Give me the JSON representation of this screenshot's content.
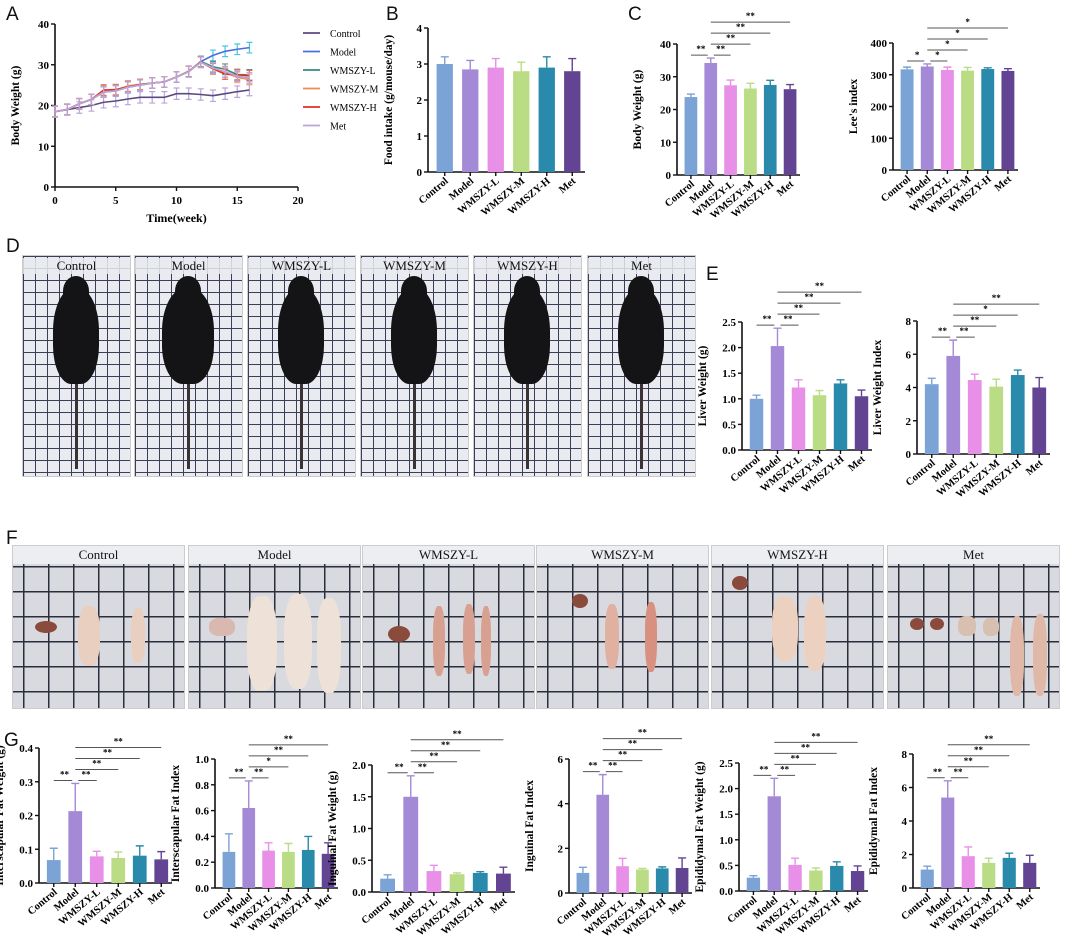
{
  "panel_letters": [
    "A",
    "B",
    "C",
    "D",
    "E",
    "F",
    "G"
  ],
  "colors": {
    "Control": "#7ba3d6",
    "Model": "#a48ad6",
    "WMSZY-L": "#e890e8",
    "WMSZY-M": "#b9dc84",
    "WMSZY-H": "#2a8aab",
    "Met": "#624493"
  },
  "photos_d": {
    "labels": [
      "Control",
      "Model",
      "WMSZY-L",
      "WMSZY-M",
      "WMSZY-H",
      "Met"
    ]
  },
  "photos_f": {
    "labels": [
      "Control",
      "Model",
      "WMSZY-L",
      "WMSZY-M",
      "WMSZY-H",
      "Met"
    ]
  },
  "chart_data": [
    {
      "id": "A",
      "type": "line",
      "xlabel": "Time(week)",
      "ylabel": "Body Weight (g)",
      "xlim": [
        0,
        20
      ],
      "xticks": [
        0,
        5,
        10,
        15,
        20
      ],
      "ylim": [
        0,
        40
      ],
      "yticks": [
        0,
        10,
        20,
        30,
        40
      ],
      "legend_position": "right",
      "x": [
        0,
        1,
        2,
        3,
        4,
        5,
        6,
        7,
        8,
        9,
        10,
        11,
        12,
        13,
        14,
        15,
        16
      ],
      "series": [
        {
          "name": "Control",
          "color": "#5b4a7f",
          "error_color": "#b9a5dc",
          "error": 1.4,
          "values": [
            18.5,
            19,
            19.5,
            20,
            20.8,
            21.1,
            21.6,
            22,
            22,
            22,
            22.9,
            22.9,
            22.7,
            22.4,
            22.9,
            23.4,
            23.8
          ]
        },
        {
          "name": "Model",
          "color": "#4a6ee0",
          "error_color": "#45c6e6",
          "error": 1.3,
          "values": [
            18.5,
            19,
            20.4,
            21.5,
            23.3,
            23.6,
            24.5,
            25,
            25.5,
            25.8,
            27,
            28.3,
            30.8,
            32.3,
            33.3,
            33.8,
            34.2
          ]
        },
        {
          "name": "WMSZY-L",
          "color": "#3a8a80",
          "error_color": "#5a8f8a",
          "error": 1.3,
          "values": [
            18.5,
            19,
            20.4,
            21.5,
            23.3,
            23.6,
            24.5,
            25,
            25.5,
            25.8,
            27,
            28.3,
            30.8,
            29.5,
            28.9,
            27.6,
            27.5
          ]
        },
        {
          "name": "WMSZY-M",
          "color": "#f08a50",
          "error_color": "#f0a080",
          "error": 1.3,
          "values": [
            18.5,
            19,
            20.5,
            21.5,
            23.6,
            23.8,
            24.8,
            25.2,
            25.5,
            25.8,
            27,
            28.3,
            30.6,
            29.1,
            28.1,
            26.9,
            26.4
          ]
        },
        {
          "name": "WMSZY-H",
          "color": "#e03020",
          "error_color": "#e07060",
          "error": 1.3,
          "values": [
            18.5,
            19,
            20.4,
            21.5,
            23.8,
            23.9,
            24.6,
            25.1,
            25.5,
            25.8,
            27,
            28.4,
            30.7,
            29,
            27.7,
            27.5,
            27.3
          ]
        },
        {
          "name": "Met",
          "color": "#b9a5dc",
          "error_color": "#b9a5dc",
          "error": 1.3,
          "values": [
            18.5,
            19,
            20.4,
            21.5,
            23.3,
            23.6,
            24.5,
            25,
            25.5,
            25.8,
            27,
            28.3,
            30.6,
            29.2,
            28.3,
            27.2,
            26.8
          ]
        }
      ]
    },
    {
      "id": "B",
      "type": "bar",
      "ylabel": "Food intake (g/mouse/day)",
      "ylim": [
        0,
        4
      ],
      "yticks": [
        0,
        1,
        2,
        3,
        4
      ],
      "categories": [
        "Control",
        "Model",
        "WMSZY-L",
        "WMSZY-M",
        "WMSZY-H",
        "Met"
      ],
      "values": [
        3.0,
        2.85,
        2.9,
        2.8,
        2.9,
        2.8
      ],
      "errors": [
        0.2,
        0.25,
        0.25,
        0.25,
        0.3,
        0.35
      ],
      "significance": []
    },
    {
      "id": "C1",
      "type": "bar",
      "ylabel": "Body Weight (g)",
      "ylim": [
        0,
        40
      ],
      "yticks": [
        0,
        10,
        20,
        30,
        40
      ],
      "categories": [
        "Control",
        "Model",
        "WMSZY-L",
        "WMSZY-M",
        "WMSZY-H",
        "Met"
      ],
      "values": [
        23.8,
        34.2,
        27.4,
        26.4,
        27.5,
        26.2
      ],
      "errors": [
        0.9,
        1.5,
        1.6,
        1.6,
        1.4,
        1.4
      ],
      "significance": [
        [
          "Control",
          "Model",
          "**"
        ],
        [
          "Model",
          "WMSZY-L",
          "**"
        ],
        [
          "Model",
          "WMSZY-M",
          "**"
        ],
        [
          "Model",
          "WMSZY-H",
          "**"
        ],
        [
          "Model",
          "Met",
          "**"
        ]
      ]
    },
    {
      "id": "C2",
      "type": "bar",
      "ylabel": "Lee's index",
      "ylim": [
        0,
        400
      ],
      "yticks": [
        0,
        100,
        200,
        300,
        400
      ],
      "categories": [
        "Control",
        "Model",
        "WMSZY-L",
        "WMSZY-M",
        "WMSZY-H",
        "Met"
      ],
      "values": [
        317,
        326,
        315,
        313,
        318,
        312
      ],
      "errors": [
        7,
        8,
        9,
        10,
        4,
        7
      ],
      "significance": [
        [
          "Control",
          "Model",
          "*"
        ],
        [
          "Model",
          "WMSZY-L",
          "*"
        ],
        [
          "Model",
          "WMSZY-M",
          "*"
        ],
        [
          "Model",
          "WMSZY-H",
          "*"
        ],
        [
          "Model",
          "Met",
          "*"
        ]
      ]
    },
    {
      "id": "E1",
      "type": "bar",
      "ylabel": "Liver Weight (g)",
      "ylim": [
        0,
        2.5
      ],
      "yticks": [
        "0.0",
        "0.5",
        "1.0",
        "1.5",
        "2.0",
        "2.5"
      ],
      "categories": [
        "Control",
        "Model",
        "WMSZY-L",
        "WMSZY-M",
        "WMSZY-H",
        "Met"
      ],
      "values": [
        1.0,
        2.03,
        1.22,
        1.07,
        1.3,
        1.05
      ],
      "errors": [
        0.07,
        0.35,
        0.15,
        0.09,
        0.07,
        0.12
      ],
      "significance": [
        [
          "Control",
          "Model",
          "**"
        ],
        [
          "Model",
          "WMSZY-L",
          "**"
        ],
        [
          "Model",
          "WMSZY-M",
          "**"
        ],
        [
          "Model",
          "WMSZY-H",
          "**"
        ],
        [
          "Model",
          "Met",
          "**"
        ]
      ]
    },
    {
      "id": "E2",
      "type": "bar",
      "ylabel": "Liver Weight Index",
      "ylim": [
        0,
        8
      ],
      "yticks": [
        0,
        2,
        4,
        6,
        8
      ],
      "categories": [
        "Control",
        "Model",
        "WMSZY-L",
        "WMSZY-M",
        "WMSZY-H",
        "Met"
      ],
      "values": [
        4.2,
        5.9,
        4.45,
        4.05,
        4.75,
        4.0
      ],
      "errors": [
        0.35,
        0.95,
        0.35,
        0.45,
        0.3,
        0.6
      ],
      "significance": [
        [
          "Control",
          "Model",
          "**"
        ],
        [
          "Model",
          "WMSZY-L",
          "**"
        ],
        [
          "Model",
          "WMSZY-M",
          "**"
        ],
        [
          "Model",
          "WMSZY-H",
          "*"
        ],
        [
          "Model",
          "Met",
          "**"
        ]
      ]
    },
    {
      "id": "G1",
      "type": "bar",
      "ylabel": "Interscapular Fat Weight (g)",
      "ylim": [
        0,
        0.4
      ],
      "yticks": [
        "0.0",
        "0.1",
        "0.2",
        "0.3",
        "0.4"
      ],
      "categories": [
        "Control",
        "Model",
        "WMSZY-L",
        "WMSZY-M",
        "WMSZY-H",
        "Met"
      ],
      "values": [
        0.068,
        0.213,
        0.079,
        0.074,
        0.081,
        0.07
      ],
      "errors": [
        0.035,
        0.082,
        0.015,
        0.018,
        0.029,
        0.023
      ],
      "significance": [
        [
          "Control",
          "Model",
          "**"
        ],
        [
          "Model",
          "WMSZY-L",
          "**"
        ],
        [
          "Model",
          "WMSZY-M",
          "**"
        ],
        [
          "Model",
          "WMSZY-H",
          "**"
        ],
        [
          "Model",
          "Met",
          "**"
        ]
      ]
    },
    {
      "id": "G2",
      "type": "bar",
      "ylabel": "Interscapular Fat Index",
      "ylim": [
        0,
        1.0
      ],
      "yticks": [
        "0.0",
        "0.2",
        "0.4",
        "0.6",
        "0.8",
        "1.0"
      ],
      "categories": [
        "Control",
        "Model",
        "WMSZY-L",
        "WMSZY-M",
        "WMSZY-H",
        "Met"
      ],
      "values": [
        0.28,
        0.62,
        0.29,
        0.28,
        0.295,
        0.265
      ],
      "errors": [
        0.14,
        0.21,
        0.06,
        0.065,
        0.105,
        0.085
      ],
      "significance": [
        [
          "Control",
          "Model",
          "**"
        ],
        [
          "Model",
          "WMSZY-L",
          "**"
        ],
        [
          "Model",
          "WMSZY-M",
          "*"
        ],
        [
          "Model",
          "WMSZY-H",
          "**"
        ],
        [
          "Model",
          "Met",
          "**"
        ]
      ]
    },
    {
      "id": "G3",
      "type": "bar",
      "ylabel": "Inguinal Fat Weight (g)",
      "ylim": [
        0,
        2.0
      ],
      "yticks": [
        "0.0",
        "0.5",
        "1.0",
        "1.5",
        "2.0"
      ],
      "categories": [
        "Control",
        "Model",
        "WMSZY-L",
        "WMSZY-M",
        "WMSZY-H",
        "Met"
      ],
      "values": [
        0.21,
        1.5,
        0.33,
        0.28,
        0.3,
        0.29
      ],
      "errors": [
        0.06,
        0.33,
        0.09,
        0.02,
        0.02,
        0.1
      ],
      "significance": [
        [
          "Control",
          "Model",
          "**"
        ],
        [
          "Model",
          "WMSZY-L",
          "**"
        ],
        [
          "Model",
          "WMSZY-M",
          "**"
        ],
        [
          "Model",
          "WMSZY-H",
          "**"
        ],
        [
          "Model",
          "Met",
          "**"
        ]
      ]
    },
    {
      "id": "G4",
      "type": "bar",
      "ylabel": "Inguinal Fat Index",
      "ylim": [
        0,
        6
      ],
      "yticks": [
        0,
        2,
        4,
        6
      ],
      "categories": [
        "Control",
        "Model",
        "WMSZY-L",
        "WMSZY-M",
        "WMSZY-H",
        "Met"
      ],
      "values": [
        0.9,
        4.4,
        1.2,
        1.05,
        1.1,
        1.12
      ],
      "errors": [
        0.25,
        0.9,
        0.35,
        0.05,
        0.07,
        0.45
      ],
      "significance": [
        [
          "Control",
          "Model",
          "**"
        ],
        [
          "Model",
          "WMSZY-L",
          "**"
        ],
        [
          "Model",
          "WMSZY-M",
          "**"
        ],
        [
          "Model",
          "WMSZY-H",
          "**"
        ],
        [
          "Model",
          "Met",
          "**"
        ]
      ]
    },
    {
      "id": "G5",
      "type": "bar",
      "ylabel": "Epididymal Fat Weight (g)",
      "ylim": [
        0,
        2.5
      ],
      "yticks": [
        "0.0",
        "0.5",
        "1.0",
        "1.5",
        "2.0",
        "2.5"
      ],
      "categories": [
        "Control",
        "Model",
        "WMSZY-L",
        "WMSZY-M",
        "WMSZY-H",
        "Met"
      ],
      "values": [
        0.26,
        1.85,
        0.51,
        0.4,
        0.49,
        0.39
      ],
      "errors": [
        0.04,
        0.35,
        0.13,
        0.05,
        0.08,
        0.1
      ],
      "significance": [
        [
          "Control",
          "Model",
          "**"
        ],
        [
          "Model",
          "WMSZY-L",
          "**"
        ],
        [
          "Model",
          "WMSZY-M",
          "**"
        ],
        [
          "Model",
          "WMSZY-H",
          "**"
        ],
        [
          "Model",
          "Met",
          "**"
        ]
      ]
    },
    {
      "id": "G6",
      "type": "bar",
      "ylabel": "Epididymal Fat Index",
      "ylim": [
        0,
        8
      ],
      "yticks": [
        0,
        2,
        4,
        6,
        8
      ],
      "categories": [
        "Control",
        "Model",
        "WMSZY-L",
        "WMSZY-M",
        "WMSZY-H",
        "Met"
      ],
      "values": [
        1.1,
        5.4,
        1.9,
        1.5,
        1.8,
        1.5
      ],
      "errors": [
        0.2,
        1.0,
        0.55,
        0.28,
        0.28,
        0.45
      ],
      "significance": [
        [
          "Control",
          "Model",
          "**"
        ],
        [
          "Model",
          "WMSZY-L",
          "**"
        ],
        [
          "Model",
          "WMSZY-M",
          "**"
        ],
        [
          "Model",
          "WMSZY-H",
          "**"
        ],
        [
          "Model",
          "Met",
          "**"
        ]
      ]
    }
  ]
}
